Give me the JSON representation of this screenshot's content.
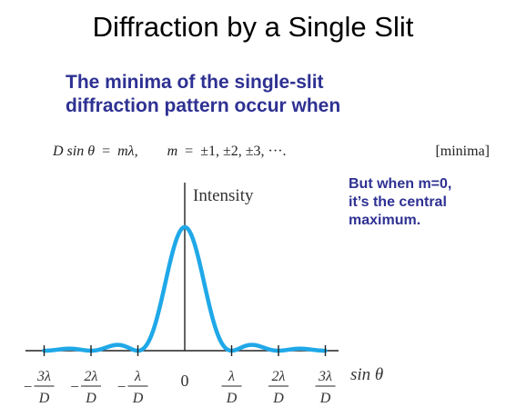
{
  "title": "Diffraction by a Single Slit",
  "subtitle": {
    "line1": "The minima of the single-slit",
    "line2": "diffraction pattern occur when"
  },
  "equation": {
    "lhs": "D sin θ",
    "eq1": "=",
    "rhs": "mλ,",
    "m_var": "m",
    "eq2": "=",
    "m_values": "±1, ±2, ±3, ···.",
    "tag": "[minima]"
  },
  "note": {
    "line1": "But when m=0,",
    "line2": "it’s the central",
    "line3": "maximum."
  },
  "colors": {
    "title": "#000000",
    "accent_text": "#2e3192",
    "curve": "#1fa8e8",
    "axes": "#222222"
  },
  "chart_data": {
    "type": "line",
    "title": "",
    "ylabel": "Intensity",
    "xlabel": "sin θ",
    "function": "sinc^2",
    "x_domain": [
      -3,
      3
    ],
    "y_range": [
      0,
      1
    ],
    "minima_markers": [
      -3,
      -2,
      -1,
      1,
      2,
      3
    ],
    "x_ticks": [
      {
        "value": -3,
        "sign": "−",
        "num": "3λ",
        "den": "D"
      },
      {
        "value": -2,
        "sign": "−",
        "num": "2λ",
        "den": "D"
      },
      {
        "value": -1,
        "sign": "−",
        "num": "λ",
        "den": "D"
      },
      {
        "value": 0,
        "label": "0"
      },
      {
        "value": 1,
        "sign": "",
        "num": "λ",
        "den": "D"
      },
      {
        "value": 2,
        "sign": "",
        "num": "2λ",
        "den": "D"
      },
      {
        "value": 3,
        "sign": "",
        "num": "3λ",
        "den": "D"
      }
    ],
    "grid": false
  }
}
